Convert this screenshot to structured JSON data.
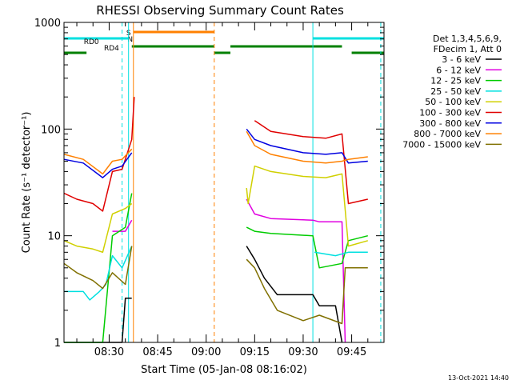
{
  "chart_data": {
    "type": "line",
    "title": "RHESSI Observing Summary Count Rates",
    "xlabel": "Start Time (05-Jan-08 08:16:02)",
    "ylabel": "Count Rate (s⁻¹ detector⁻¹)",
    "y_scale": "log",
    "ylim": [
      1,
      1000
    ],
    "xlim": [
      "08:16:02",
      "09:55:00"
    ],
    "x_ticks": [
      "08:30",
      "08:45",
      "09:00",
      "09:15",
      "09:30",
      "09:45"
    ],
    "y_ticks": [
      {
        "value": 1,
        "label": "1"
      },
      {
        "value": 10,
        "label": "10"
      },
      {
        "value": 100,
        "label": "100"
      },
      {
        "value": 1000,
        "label": "1000"
      }
    ],
    "legend": {
      "placement": "right",
      "header": [
        "Det 1,3,4,5,6,9,",
        "FDecim 1, Att 0"
      ],
      "entries": [
        {
          "label": "3 - 6 keV",
          "color": "#000000"
        },
        {
          "label": "6 - 12 keV",
          "color": "#e000e0"
        },
        {
          "label": "12 - 25 keV",
          "color": "#00cc00"
        },
        {
          "label": "25 - 50 keV",
          "color": "#00e0e0"
        },
        {
          "label": "50 - 100 keV",
          "color": "#d0d000"
        },
        {
          "label": "100 - 300 keV",
          "color": "#e00000"
        },
        {
          "label": "300 - 800 keV",
          "color": "#0000e0"
        },
        {
          "label": "800 - 7000 keV",
          "color": "#ff8000"
        },
        {
          "label": "7000 - 15000 keV",
          "color": "#807000"
        }
      ]
    },
    "series": [
      {
        "name": "3 - 6 keV",
        "color": "#000000",
        "points": [
          [
            "08:16:02",
            1
          ],
          [
            "08:34:00",
            1
          ],
          [
            "08:35:00",
            2.6
          ],
          [
            "08:37:00",
            2.6
          ],
          [
            "08:37:30",
            null
          ],
          [
            "09:12:00",
            null
          ],
          [
            "09:12:30",
            8
          ],
          [
            "09:15:00",
            6
          ],
          [
            "09:18:00",
            4
          ],
          [
            "09:22:00",
            2.8
          ],
          [
            "09:33:00",
            2.8
          ],
          [
            "09:35:00",
            2.2
          ],
          [
            "09:40:00",
            2.2
          ],
          [
            "09:42:00",
            1
          ]
        ]
      },
      {
        "name": "6 - 12 keV",
        "color": "#e000e0",
        "points": [
          [
            "08:31:00",
            11
          ],
          [
            "08:35:00",
            11
          ],
          [
            "08:37:00",
            14
          ],
          [
            "08:37:30",
            null
          ],
          [
            "09:12:00",
            null
          ],
          [
            "09:12:30",
            22
          ],
          [
            "09:15:00",
            16
          ],
          [
            "09:20:00",
            14.5
          ],
          [
            "09:33:00",
            14
          ],
          [
            "09:35:00",
            13.5
          ],
          [
            "09:42:00",
            13.5
          ],
          [
            "09:43:00",
            1
          ]
        ]
      },
      {
        "name": "12 - 25 keV",
        "color": "#00cc00",
        "points": [
          [
            "08:16:02",
            1
          ],
          [
            "08:28:00",
            1
          ],
          [
            "08:31:00",
            10
          ],
          [
            "08:35:00",
            12
          ],
          [
            "08:37:00",
            25
          ],
          [
            "08:37:30",
            null
          ],
          [
            "09:12:00",
            null
          ],
          [
            "09:12:30",
            12
          ],
          [
            "09:15:00",
            11
          ],
          [
            "09:20:00",
            10.5
          ],
          [
            "09:33:00",
            10
          ],
          [
            "09:35:00",
            5
          ],
          [
            "09:42:00",
            5.5
          ],
          [
            "09:44:00",
            9
          ],
          [
            "09:50:00",
            10
          ]
        ]
      },
      {
        "name": "25 - 50 keV",
        "color": "#00e0e0",
        "points": [
          [
            "08:16:02",
            3
          ],
          [
            "08:22:00",
            3
          ],
          [
            "08:24:00",
            2.5
          ],
          [
            "08:27:00",
            3
          ],
          [
            "08:29:00",
            3.5
          ],
          [
            "08:31:00",
            6.5
          ],
          [
            "08:34:00",
            5
          ],
          [
            "08:37:00",
            8
          ],
          [
            "08:37:30",
            null
          ],
          [
            "09:33:00",
            null
          ],
          [
            "09:33:30",
            7
          ],
          [
            "09:40:00",
            6.5
          ],
          [
            "09:44:00",
            7
          ],
          [
            "09:50:00",
            7
          ]
        ]
      },
      {
        "name": "50 - 100 keV",
        "color": "#d0d000",
        "points": [
          [
            "08:16:02",
            9
          ],
          [
            "08:20:00",
            8
          ],
          [
            "08:25:00",
            7.5
          ],
          [
            "08:28:00",
            7
          ],
          [
            "08:31:00",
            16
          ],
          [
            "08:35:00",
            18
          ],
          [
            "08:37:00",
            20
          ],
          [
            "08:37:30",
            null
          ],
          [
            "09:12:00",
            null
          ],
          [
            "09:12:30",
            28
          ],
          [
            "09:13:00",
            20
          ],
          [
            "09:15:00",
            45
          ],
          [
            "09:20:00",
            40
          ],
          [
            "09:30:00",
            36
          ],
          [
            "09:37:00",
            35
          ],
          [
            "09:42:00",
            38
          ],
          [
            "09:44:00",
            8
          ],
          [
            "09:50:00",
            9
          ]
        ]
      },
      {
        "name": "100 - 300 keV",
        "color": "#e00000",
        "points": [
          [
            "08:16:02",
            25
          ],
          [
            "08:20:00",
            22
          ],
          [
            "08:25:00",
            20
          ],
          [
            "08:28:00",
            17
          ],
          [
            "08:31:00",
            40
          ],
          [
            "08:34:00",
            42
          ],
          [
            "08:37:00",
            80
          ],
          [
            "08:37:45",
            200
          ],
          [
            "08:38:00",
            null
          ],
          [
            "09:12:00",
            null
          ],
          [
            "09:15:00",
            120
          ],
          [
            "09:20:00",
            95
          ],
          [
            "09:30:00",
            85
          ],
          [
            "09:37:00",
            82
          ],
          [
            "09:42:00",
            90
          ],
          [
            "09:44:00",
            20
          ],
          [
            "09:50:00",
            22
          ]
        ]
      },
      {
        "name": "300 - 800 keV",
        "color": "#0000e0",
        "points": [
          [
            "08:16:02",
            52
          ],
          [
            "08:22:00",
            48
          ],
          [
            "08:28:00",
            35
          ],
          [
            "08:31:00",
            42
          ],
          [
            "08:34:00",
            45
          ],
          [
            "08:37:00",
            60
          ],
          [
            "08:37:30",
            null
          ],
          [
            "09:12:00",
            null
          ],
          [
            "09:12:30",
            100
          ],
          [
            "09:15:00",
            80
          ],
          [
            "09:20:00",
            70
          ],
          [
            "09:30:00",
            60
          ],
          [
            "09:37:00",
            58
          ],
          [
            "09:42:00",
            60
          ],
          [
            "09:44:00",
            48
          ],
          [
            "09:50:00",
            50
          ]
        ]
      },
      {
        "name": "800 - 7000 keV",
        "color": "#ff8000",
        "points": [
          [
            "08:16:02",
            58
          ],
          [
            "08:22:00",
            52
          ],
          [
            "08:28:00",
            38
          ],
          [
            "08:31:00",
            50
          ],
          [
            "08:34:00",
            52
          ],
          [
            "08:37:00",
            65
          ],
          [
            "08:37:30",
            null
          ],
          [
            "09:12:00",
            null
          ],
          [
            "09:12:30",
            95
          ],
          [
            "09:15:00",
            70
          ],
          [
            "09:20:00",
            58
          ],
          [
            "09:30:00",
            50
          ],
          [
            "09:37:00",
            48
          ],
          [
            "09:42:00",
            50
          ],
          [
            "09:44:00",
            52
          ],
          [
            "09:50:00",
            55
          ]
        ]
      },
      {
        "name": "7000 - 15000 keV",
        "color": "#807000",
        "points": [
          [
            "08:16:02",
            5.5
          ],
          [
            "08:20:00",
            4.5
          ],
          [
            "08:25:00",
            3.8
          ],
          [
            "08:28:00",
            3.2
          ],
          [
            "08:31:00",
            4.5
          ],
          [
            "08:35:00",
            3.5
          ],
          [
            "08:37:00",
            8
          ],
          [
            "08:37:30",
            null
          ],
          [
            "09:12:00",
            null
          ],
          [
            "09:12:30",
            6
          ],
          [
            "09:15:00",
            5
          ],
          [
            "09:18:00",
            3.2
          ],
          [
            "09:22:00",
            2
          ],
          [
            "09:30:00",
            1.6
          ],
          [
            "09:35:00",
            1.8
          ],
          [
            "09:42:00",
            1.5
          ],
          [
            "09:43:00",
            5
          ],
          [
            "09:50:00",
            5
          ]
        ]
      }
    ],
    "markers": [
      {
        "label": "S",
        "time": "08:36:00",
        "color": "#ff8000"
      },
      {
        "label": "N",
        "time": "08:36:30",
        "color": "#00e0e0"
      }
    ],
    "status_bars": [
      {
        "name": "attenuator",
        "color": "#ff8000",
        "segments": [
          [
            "08:37:30",
            "09:02:30"
          ]
        ]
      },
      {
        "name": "saa",
        "color": "#00e0e0",
        "segments": [
          [
            "08:16:02",
            "08:36:00"
          ],
          [
            "09:33:00",
            "09:55:00"
          ]
        ]
      },
      {
        "label": "RD0",
        "color": "#008000",
        "segments": [
          [
            "08:37:00",
            "09:02:30"
          ],
          [
            "09:07:30",
            "09:42:00"
          ]
        ]
      },
      {
        "label": "RD4",
        "color": "#008000",
        "segments": [
          [
            "08:16:02",
            "08:23:00"
          ],
          [
            "09:02:30",
            "09:07:30"
          ],
          [
            "09:45:00",
            "09:55:00"
          ]
        ]
      }
    ],
    "vertical_lines": [
      {
        "time": "08:34:00",
        "color": "#00e0e0",
        "style": "dashed"
      },
      {
        "time": "08:36:00",
        "color": "#00e0e0",
        "style": "solid"
      },
      {
        "time": "08:37:30",
        "color": "#ff8000",
        "style": "solid"
      },
      {
        "time": "09:02:30",
        "color": "#ff8000",
        "style": "dashed"
      },
      {
        "time": "09:33:00",
        "color": "#00e0e0",
        "style": "solid"
      },
      {
        "time": "09:54:00",
        "color": "#00e0e0",
        "style": "dashed"
      }
    ]
  },
  "footer": {
    "timestamp": "13-Oct-2021 14:40"
  }
}
